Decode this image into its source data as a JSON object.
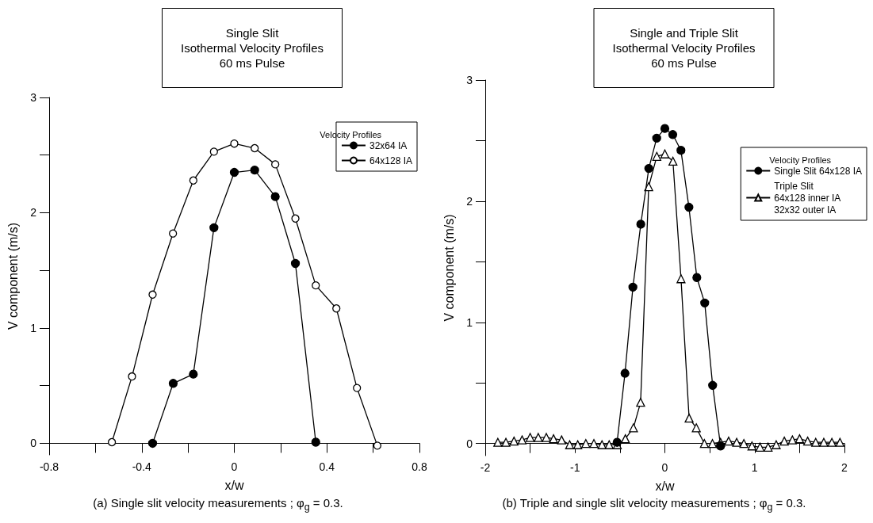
{
  "chart_data": [
    {
      "type": "line",
      "title": "Single Slit\nIsothermal Velocity Profiles\n60 ms Pulse",
      "xlabel": "x/w",
      "ylabel": "V component (m/s)",
      "legend_title": "Velocity Profiles",
      "legend": "top right",
      "grid": false,
      "xlim": [
        -0.8,
        0.8
      ],
      "xticks": [
        -0.8,
        {
          "value": -0.6,
          "label": null
        },
        -0.4,
        {
          "value": -0.2,
          "label": null
        },
        0,
        {
          "value": 0.2,
          "label": null
        },
        0.4,
        {
          "value": 0.6,
          "label": null
        },
        0.8
      ],
      "ylim": [
        -0.1,
        3
      ],
      "yticks": [
        0,
        {
          "value": 0.5,
          "label": null
        },
        1,
        {
          "value": 1.5,
          "label": null
        },
        2,
        {
          "value": 2.5,
          "label": null
        },
        3
      ],
      "annotations": [
        "(a)  Single slit velocity measurements ; φ$_{g}$ = 0.3."
      ],
      "series": [
        {
          "name": "32x64 IA",
          "color": "#000000",
          "marker": "circle",
          "x": [
            -0.353,
            -0.264,
            -0.177,
            -0.088,
            0,
            0.088,
            0.177,
            0.264,
            0.352
          ],
          "values": [
            0.0,
            0.52,
            0.6,
            1.87,
            2.35,
            2.37,
            2.14,
            1.56,
            0.01
          ]
        },
        {
          "name": "64x128 IA",
          "color": "#000000",
          "marker": "circle",
          "x": [
            -0.529,
            -0.442,
            -0.353,
            -0.265,
            -0.177,
            -0.088,
            0,
            0.088,
            0.177,
            0.264,
            0.352,
            0.441,
            0.53,
            0.618
          ],
          "values": [
            0.01,
            0.58,
            1.29,
            1.82,
            2.28,
            2.53,
            2.6,
            2.56,
            2.42,
            1.95,
            1.37,
            1.17,
            0.48,
            -0.02
          ]
        }
      ]
    },
    {
      "type": "line",
      "title": "Single and Triple Slit\nIsothermal Velocity Profiles\n60 ms Pulse",
      "xlabel": "x/w",
      "ylabel": "V component (m/s)",
      "legend_title": "Velocity Profiles",
      "legend": "top right",
      "grid": false,
      "xlim": [
        -2,
        2
      ],
      "xticks": [
        -2,
        {
          "value": -1.5,
          "label": null
        },
        -1,
        {
          "value": -0.5,
          "label": null
        },
        0,
        {
          "value": 0.5,
          "label": null
        },
        1,
        {
          "value": 1.5,
          "label": null
        },
        2
      ],
      "ylim": [
        -0.1,
        3
      ],
      "yticks": [
        0,
        {
          "value": 0.5,
          "label": null
        },
        1,
        {
          "value": 1.5,
          "label": null
        },
        2,
        {
          "value": 2.5,
          "label": null
        },
        3
      ],
      "annotations": [
        "(b)  Triple and single slit velocity measurements ; φ$_{g}$ = 0.3."
      ],
      "series": [
        {
          "name": "Single Slit 64x128 IA",
          "color": "#000000",
          "marker": "circle",
          "x": [
            -0.532,
            -0.444,
            -0.356,
            -0.268,
            -0.179,
            -0.091,
            0,
            0.088,
            0.179,
            0.268,
            0.356,
            0.444,
            0.532,
            0.62
          ],
          "values": [
            0.01,
            0.58,
            1.29,
            1.81,
            2.27,
            2.52,
            2.6,
            2.55,
            2.42,
            1.95,
            1.37,
            1.16,
            0.48,
            -0.02
          ]
        },
        {
          "name": "Triple Slit\n64x128 inner IA\n32x32 outer IA",
          "color": "#000000",
          "marker": "triangle",
          "x": [
            -1.86,
            -1.77,
            -1.68,
            -1.59,
            -1.5,
            -1.41,
            -1.32,
            -1.24,
            -1.15,
            -1.06,
            -0.97,
            -0.88,
            -0.79,
            -0.7,
            -0.62,
            -0.53,
            -0.44,
            -0.35,
            -0.27,
            -0.18,
            -0.09,
            0,
            0.09,
            0.18,
            0.27,
            0.35,
            0.44,
            0.53,
            0.62,
            0.71,
            0.8,
            0.88,
            0.97,
            1.06,
            1.15,
            1.24,
            1.33,
            1.42,
            1.5,
            1.59,
            1.68,
            1.77,
            1.86,
            1.95
          ],
          "values": [
            0.01,
            0.01,
            0.02,
            0.03,
            0.05,
            0.05,
            0.05,
            0.04,
            0.03,
            -0.01,
            -0.01,
            0.0,
            0.0,
            -0.01,
            -0.01,
            -0.01,
            0.04,
            0.13,
            0.34,
            2.12,
            2.37,
            2.39,
            2.33,
            1.36,
            0.21,
            0.13,
            0.0,
            0.0,
            0.01,
            0.02,
            0.01,
            0.0,
            -0.02,
            -0.03,
            -0.03,
            -0.01,
            0.02,
            0.03,
            0.04,
            0.02,
            0.01,
            0.01,
            0.01,
            0.01
          ]
        }
      ]
    }
  ]
}
